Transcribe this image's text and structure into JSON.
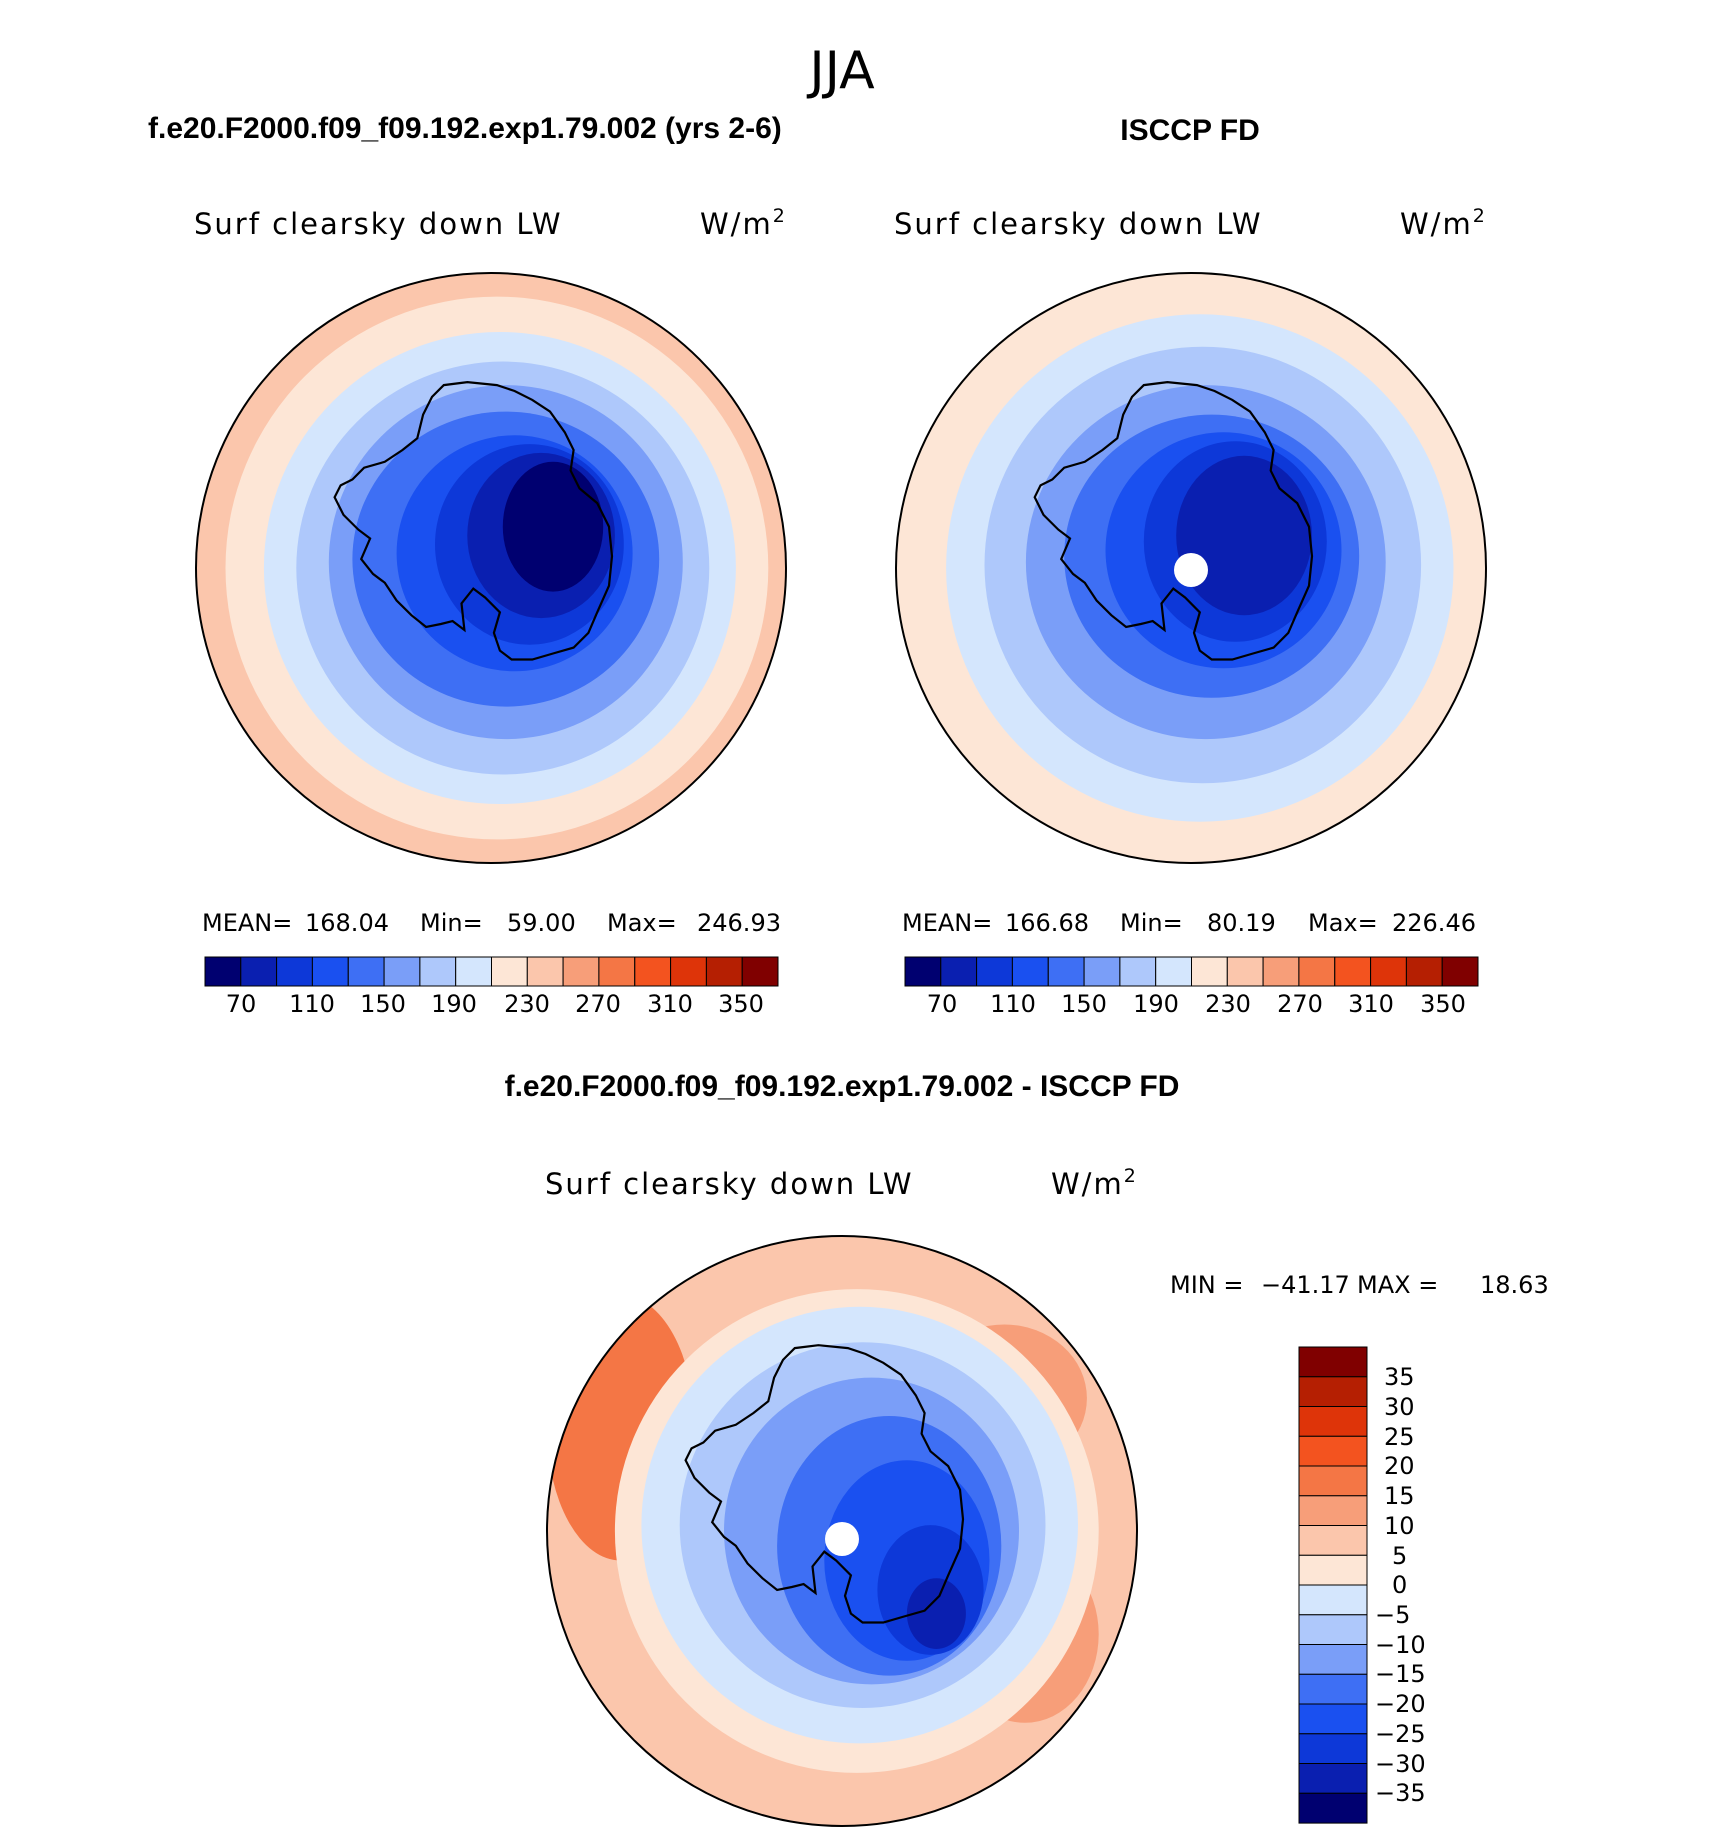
{
  "season_title": "JJA",
  "colors": {
    "abs_levels": [
      "#000070",
      "#0a1fb0",
      "#0d38d8",
      "#1a50f0",
      "#3e6ff4",
      "#7a9ef8",
      "#aec8fb",
      "#d4e6fd",
      "#fde6d6",
      "#fbc6ac",
      "#f79e79",
      "#f47645",
      "#f3531f",
      "#de3409",
      "#b51f02",
      "#800000"
    ],
    "diff_levels": [
      "#000070",
      "#0a1fb0",
      "#0d38d8",
      "#1a50f0",
      "#3e6ff4",
      "#7a9ef8",
      "#aec8fb",
      "#d4e6fd",
      "#fde6d6",
      "#fbc6ac",
      "#f79e79",
      "#f47645",
      "#f3531f",
      "#de3409",
      "#b51f02",
      "#800000"
    ],
    "coastline": "#000000",
    "pole_mask": "#ffffff"
  },
  "panels": [
    {
      "heading": "f.e20.F2000.f09_f09.192.exp1.79.002 (yrs 2-6)",
      "variable": "Surf clearsky down LW",
      "units_base": "W/m",
      "units_exp": "2",
      "stats": {
        "mean_label": "MEAN=",
        "mean": "168.04",
        "min_label": "Min=",
        "min": "59.00",
        "max_label": "Max=",
        "max": "246.93"
      },
      "colorbar_ticks": [
        "70",
        "110",
        "150",
        "190",
        "230",
        "270",
        "310",
        "350"
      ],
      "has_pole_mask": false
    },
    {
      "heading": "ISCCP FD",
      "variable": "Surf clearsky down LW",
      "units_base": "W/m",
      "units_exp": "2",
      "stats": {
        "mean_label": "MEAN=",
        "mean": "166.68",
        "min_label": "Min=",
        "min": "80.19",
        "max_label": "Max=",
        "max": "226.46"
      },
      "colorbar_ticks": [
        "70",
        "110",
        "150",
        "190",
        "230",
        "270",
        "310",
        "350"
      ],
      "has_pole_mask": true
    },
    {
      "heading": "f.e20.F2000.f09_f09.192.exp1.79.002 - ISCCP FD",
      "variable": "Surf clearsky down LW",
      "units_base": "W/m",
      "units_exp": "2",
      "stats": {
        "min_label": "MIN =",
        "min": "−41.17",
        "max_label": "MAX =",
        "max": "18.63"
      },
      "colorbar_ticks": [
        "35",
        "30",
        "25",
        "20",
        "15",
        "10",
        "5",
        "0",
        "−5",
        "−10",
        "−15",
        "−20",
        "−25",
        "−30",
        "−35"
      ],
      "has_pole_mask": true
    }
  ],
  "chart_data": [
    {
      "type": "heatmap",
      "projection": "south polar stereographic",
      "title": "Surf clearsky down LW",
      "units": "W/m2",
      "stats": {
        "mean": 168.04,
        "min": 59.0,
        "max": 246.93
      },
      "contour_levels": [
        50,
        70,
        90,
        110,
        130,
        150,
        170,
        190,
        210,
        230,
        250,
        270,
        290,
        310,
        330,
        350
      ],
      "colorbar_tick_labels": [
        70,
        110,
        150,
        190,
        230,
        270,
        310,
        350
      ]
    },
    {
      "type": "heatmap",
      "projection": "south polar stereographic",
      "title": "Surf clearsky down LW",
      "units": "W/m2",
      "stats": {
        "mean": 166.68,
        "min": 80.19,
        "max": 226.46
      },
      "contour_levels": [
        50,
        70,
        90,
        110,
        130,
        150,
        170,
        190,
        210,
        230,
        250,
        270,
        290,
        310,
        330,
        350
      ],
      "colorbar_tick_labels": [
        70,
        110,
        150,
        190,
        230,
        270,
        310,
        350
      ]
    },
    {
      "type": "heatmap",
      "projection": "south polar stereographic",
      "title": "Surf clearsky down LW",
      "units": "W/m2",
      "stats": {
        "min": -41.17,
        "max": 18.63
      },
      "contour_levels": [
        -35,
        -30,
        -25,
        -20,
        -15,
        -10,
        -5,
        0,
        5,
        10,
        15,
        20,
        25,
        30,
        35
      ],
      "colorbar_tick_labels": [
        35,
        30,
        25,
        20,
        15,
        10,
        5,
        0,
        -5,
        -10,
        -15,
        -20,
        -25,
        -30,
        -35
      ]
    }
  ]
}
